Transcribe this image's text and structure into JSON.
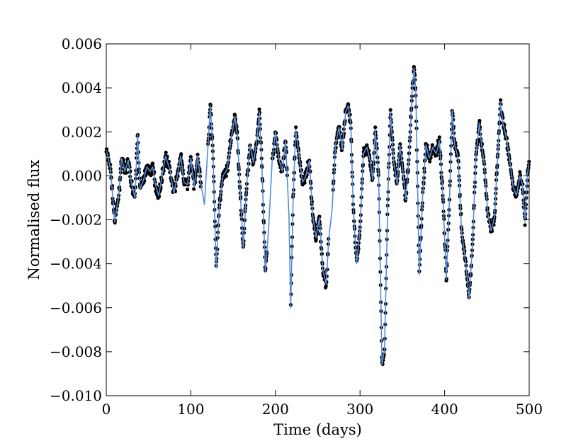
{
  "chart_data": {
    "type": "scatter",
    "xlabel": "Time (days)",
    "ylabel": "Normalised flux",
    "xlim": [
      0,
      500
    ],
    "ylim": [
      -0.01,
      0.006
    ],
    "x_ticks": [
      0,
      100,
      200,
      300,
      400,
      500
    ],
    "x_tick_labels": [
      "0",
      "100",
      "200",
      "300",
      "400",
      "500"
    ],
    "y_ticks": [
      0.006,
      0.004,
      0.002,
      0.0,
      -0.002,
      -0.004,
      -0.006,
      -0.008,
      -0.01
    ],
    "y_tick_labels": [
      "0.006",
      "0.004",
      "0.002",
      "0.000",
      "−0.002",
      "−0.004",
      "−0.006",
      "−0.008",
      "−0.010"
    ],
    "grid": false,
    "colors": {
      "data_points": "#000000",
      "model_line": "#5b8bd6"
    },
    "series": [
      {
        "type": "line",
        "x": [
          0,
          5,
          10,
          15,
          18,
          22,
          26,
          30,
          34,
          37,
          40,
          44,
          48,
          52,
          55,
          58,
          62,
          66,
          70,
          75,
          80,
          84,
          88,
          92,
          96,
          100,
          104,
          108,
          112,
          116,
          120,
          123,
          126,
          130,
          134,
          138,
          143,
          147,
          152,
          155,
          158,
          162,
          166,
          170,
          174,
          178,
          181,
          184,
          188,
          192,
          196,
          200,
          204,
          208,
          212,
          216,
          218,
          221,
          224,
          228,
          232,
          236,
          240,
          244,
          248,
          252,
          256,
          260,
          263,
          267,
          271,
          275,
          279,
          283,
          286,
          289,
          292,
          296,
          300,
          304,
          308,
          312,
          315,
          318,
          322,
          326,
          329,
          333,
          336,
          340,
          344,
          347,
          350,
          354,
          358,
          362,
          364,
          366,
          370,
          374,
          378,
          382,
          386,
          390,
          394,
          398,
          402,
          406,
          409,
          412,
          416,
          420,
          425,
          429,
          433,
          437,
          441,
          444,
          447,
          451,
          455,
          459,
          463,
          466,
          469,
          473,
          477,
          481,
          485,
          489,
          492,
          495,
          498,
          500
        ],
        "y": [
          0.0012,
          0.0003,
          -0.0021,
          -0.0008,
          0.0008,
          0.0002,
          0.0007,
          -0.0004,
          -0.001,
          0.0019,
          -0.0006,
          -0.0002,
          0.0004,
          0.0002,
          0.0004,
          -0.0004,
          -0.0009,
          0.0,
          0.0009,
          0.0003,
          -0.0008,
          0.0,
          0.0009,
          -0.0003,
          -0.0004,
          0.0008,
          -0.0005,
          0.0009,
          -0.0004,
          -0.0013,
          0.0012,
          0.0032,
          0.0012,
          -0.0042,
          -0.0012,
          0.0,
          0.0003,
          0.0015,
          0.0027,
          0.0018,
          -0.0005,
          -0.0033,
          -0.0004,
          0.0014,
          0.0006,
          0.0016,
          0.0029,
          0.0005,
          -0.0044,
          -0.0024,
          0.0006,
          0.002,
          0.0008,
          0.0002,
          0.0016,
          -0.0018,
          -0.006,
          -0.0009,
          0.0021,
          0.0009,
          -0.0003,
          0.0,
          0.0007,
          -0.0018,
          -0.0028,
          -0.0019,
          -0.0043,
          -0.0049,
          -0.0029,
          -0.0015,
          0.0014,
          0.0022,
          0.0012,
          0.0029,
          0.0032,
          0.0024,
          -0.0014,
          -0.004,
          -0.0024,
          0.001,
          0.0013,
          0.0007,
          -0.0002,
          0.0021,
          0.0,
          -0.0086,
          -0.0079,
          -0.0009,
          0.0029,
          0.0006,
          -0.0004,
          0.0014,
          0.0005,
          -0.0011,
          0.0009,
          0.0041,
          0.0049,
          0.0038,
          -0.0045,
          -0.0009,
          0.0014,
          0.0008,
          0.0013,
          0.001,
          0.0016,
          -0.0009,
          -0.0047,
          -0.0008,
          0.003,
          0.0014,
          0.0008,
          -0.0025,
          -0.004,
          -0.0056,
          -0.0031,
          0.0009,
          0.0024,
          0.0013,
          0.0005,
          -0.0017,
          -0.0025,
          -0.0019,
          0.0011,
          0.0033,
          0.0024,
          0.0017,
          0.0007,
          -0.0005,
          -0.0009,
          0.0,
          -0.0004,
          -0.0021,
          0.0001,
          0.0007
        ]
      }
    ]
  }
}
